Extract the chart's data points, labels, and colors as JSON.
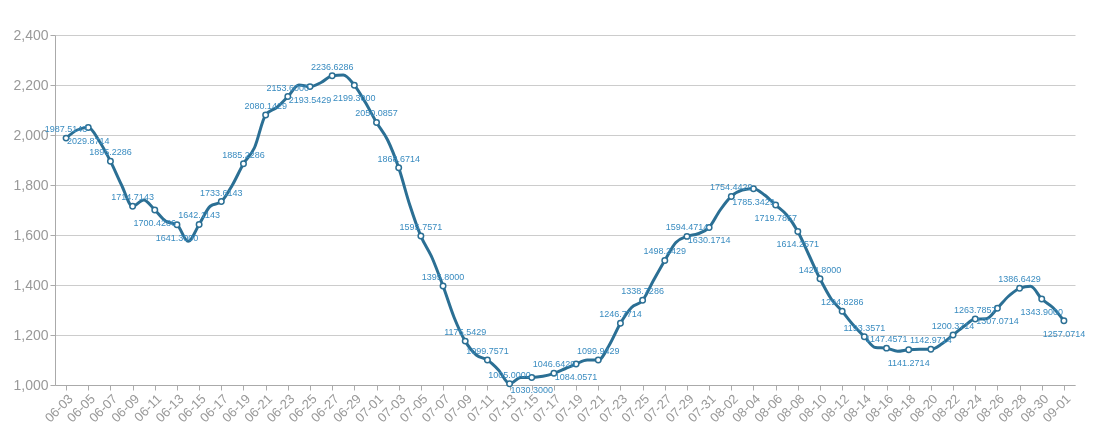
{
  "chart_data": {
    "type": "line",
    "x": [
      "--06-03",
      "--06-04",
      "--06-05",
      "--06-06",
      "--06-07",
      "--06-08",
      "--06-09",
      "--06-10",
      "--06-11",
      "--06-12",
      "--06-13",
      "--06-14",
      "--06-15",
      "--06-16",
      "--06-17",
      "--06-18",
      "--06-19",
      "--06-20",
      "--06-21",
      "--06-22",
      "--06-23",
      "--06-24",
      "--06-25",
      "--06-26",
      "--06-27",
      "--06-28",
      "--06-29",
      "--06-30",
      "--07-01",
      "--07-02",
      "--07-03",
      "--07-04",
      "--07-05",
      "--07-06",
      "--07-07",
      "--07-08",
      "--07-09",
      "--07-10",
      "--07-11",
      "--07-12",
      "--07-13",
      "--07-14",
      "--07-15",
      "--07-16",
      "--07-17",
      "--07-18",
      "--07-19",
      "--07-20",
      "--07-21",
      "--07-22",
      "--07-23",
      "--07-24",
      "--07-25",
      "--07-26",
      "--07-27",
      "--07-28",
      "--07-29",
      "--07-30",
      "--07-31",
      "--08-01",
      "--08-02",
      "--08-03",
      "--08-04",
      "--08-05",
      "--08-06",
      "--08-07",
      "--08-08",
      "--08-09",
      "--08-10",
      "--08-11",
      "--08-12",
      "--08-13",
      "--08-14",
      "--08-15",
      "--08-16",
      "--08-17",
      "--08-18",
      "--08-19",
      "--08-20",
      "--08-21",
      "--08-22",
      "--08-23",
      "--08-24",
      "--08-25",
      "--08-26",
      "--08-27",
      "--08-28",
      "--08-29",
      "--08-30",
      "--08-31",
      "--09-01"
    ],
    "series": [
      {
        "color": "#2b6f94",
        "values": [
          1987.5143,
          2020,
          2029.8714,
          1975,
          1895.2286,
          1800,
          1714.7143,
          1740,
          1700.4286,
          1655,
          1641.3,
          1575,
          1642.1143,
          1715,
          1733.6143,
          1800,
          1885.2286,
          1950,
          2080.1429,
          2110,
          2153.6,
          2200,
          2193.5429,
          2210,
          2236.6286,
          2240,
          2199.3,
          2130,
          2050.0857,
          1980,
          1868.6714,
          1720,
          1595.7571,
          1510,
          1395.8,
          1270,
          1175.5429,
          1120,
          1099.7571,
          1060,
          1005,
          1030,
          1030.3,
          1035,
          1046.6429,
          1065,
          1084.0571,
          1100,
          1099.9429,
          1160,
          1246.7714,
          1310,
          1338.7286,
          1420,
          1498.2429,
          1570,
          1594.4714,
          1605,
          1630.1714,
          1700,
          1754.4429,
          1780,
          1785.3429,
          1760,
          1719.7857,
          1680,
          1614.2571,
          1520,
          1424.8,
          1345,
          1294.8286,
          1240,
          1193.3571,
          1150,
          1147.4571,
          1135,
          1141.2714,
          1143,
          1142.9714,
          1165,
          1200.3714,
          1235,
          1263.7857,
          1265,
          1307.0714,
          1355,
          1386.6429,
          1395,
          1343.9,
          1310,
          1257.0714
        ],
        "value_labels": [
          "1987.5143",
          null,
          "2029.8714",
          null,
          "1895.2286",
          null,
          "1714.7143",
          null,
          "1700.4286",
          null,
          "1641.3000",
          null,
          "1642.1143",
          null,
          "1733.6143",
          null,
          "1885.2286",
          null,
          "2080.1429",
          null,
          "2153.6000",
          null,
          "2193.5429",
          null,
          "2236.6286",
          null,
          "2199.3000",
          null,
          "2050.0857",
          null,
          "1868.6714",
          null,
          "1595.7571",
          null,
          "1395.8000",
          null,
          "1175.5429",
          null,
          "1099.7571",
          null,
          "1005.0000",
          null,
          "1030.3000",
          null,
          "1046.6429",
          null,
          "1084.0571",
          null,
          "1099.9429",
          null,
          "1246.7714",
          null,
          "1338.7286",
          null,
          "1498.2429",
          null,
          "1594.4714",
          null,
          "1630.1714",
          null,
          "1754.4429",
          null,
          "1785.3429",
          null,
          "1719.7857",
          null,
          "1614.2571",
          null,
          "1424.8000",
          null,
          "1294.8286",
          null,
          "1193.3571",
          null,
          "1147.4571",
          null,
          "1141.2714",
          null,
          "1142.9714",
          null,
          "1200.3714",
          null,
          "1263.7857",
          null,
          "1307.0714",
          null,
          "1386.6429",
          null,
          "1343.9000",
          null,
          "1257.0714"
        ]
      }
    ],
    "xlim": [
      "--06-02",
      "--09-02"
    ],
    "xticks": [
      {
        "value": "--06-03",
        "label": "06-03"
      },
      {
        "value": "--06-05",
        "label": "06-05"
      },
      {
        "value": "--06-07",
        "label": "06-07"
      },
      {
        "value": "--06-09",
        "label": "06-09"
      },
      {
        "value": "--06-11",
        "label": "06-11"
      },
      {
        "value": "--06-13",
        "label": "06-13"
      },
      {
        "value": "--06-15",
        "label": "06-15"
      },
      {
        "value": "--06-17",
        "label": "06-17"
      },
      {
        "value": "--06-19",
        "label": "06-19"
      },
      {
        "value": "--06-21",
        "label": "06-21"
      },
      {
        "value": "--06-23",
        "label": "06-23"
      },
      {
        "value": "--06-25",
        "label": "06-25"
      },
      {
        "value": "--06-27",
        "label": "06-27"
      },
      {
        "value": "--06-29",
        "label": "06-29"
      },
      {
        "value": "--07-01",
        "label": "07-01"
      },
      {
        "value": "--07-03",
        "label": "07-03"
      },
      {
        "value": "--07-05",
        "label": "07-05"
      },
      {
        "value": "--07-07",
        "label": "07-07"
      },
      {
        "value": "--07-09",
        "label": "07-09"
      },
      {
        "value": "--07-11",
        "label": "07-11"
      },
      {
        "value": "--07-13",
        "label": "07-13"
      },
      {
        "value": "--07-15",
        "label": "07-15"
      },
      {
        "value": "--07-17",
        "label": "07-17"
      },
      {
        "value": "--07-19",
        "label": "07-19"
      },
      {
        "value": "--07-21",
        "label": "07-21"
      },
      {
        "value": "--07-23",
        "label": "07-23"
      },
      {
        "value": "--07-25",
        "label": "07-25"
      },
      {
        "value": "--07-27",
        "label": "07-27"
      },
      {
        "value": "--07-29",
        "label": "07-29"
      },
      {
        "value": "--07-31",
        "label": "07-31"
      },
      {
        "value": "--08-02",
        "label": "08-02"
      },
      {
        "value": "--08-04",
        "label": "08-04"
      },
      {
        "value": "--08-06",
        "label": "08-06"
      },
      {
        "value": "--08-08",
        "label": "08-08"
      },
      {
        "value": "--08-10",
        "label": "08-10"
      },
      {
        "value": "--08-12",
        "label": "08-12"
      },
      {
        "value": "--08-14",
        "label": "08-14"
      },
      {
        "value": "--08-16",
        "label": "08-16"
      },
      {
        "value": "--08-18",
        "label": "08-18"
      },
      {
        "value": "--08-20",
        "label": "08-20"
      },
      {
        "value": "--08-22",
        "label": "08-22"
      },
      {
        "value": "--08-24",
        "label": "08-24"
      },
      {
        "value": "--08-26",
        "label": "08-26"
      },
      {
        "value": "--08-28",
        "label": "08-28"
      },
      {
        "value": "--08-30",
        "label": "08-30"
      },
      {
        "value": "--09-01",
        "label": "09-01"
      }
    ],
    "ylim": [
      1000,
      2400
    ],
    "yticks": [
      {
        "value": 1000,
        "label": "1,000"
      },
      {
        "value": 1200,
        "label": "1,200"
      },
      {
        "value": 1400,
        "label": "1,400"
      },
      {
        "value": 1600,
        "label": "1,600"
      },
      {
        "value": 1800,
        "label": "1,800"
      },
      {
        "value": 2000,
        "label": "2,000"
      },
      {
        "value": 2200,
        "label": "2,200"
      },
      {
        "value": 2400,
        "label": "2,400"
      }
    ],
    "grid": "y",
    "marker": "circle",
    "line_style": "solid"
  }
}
